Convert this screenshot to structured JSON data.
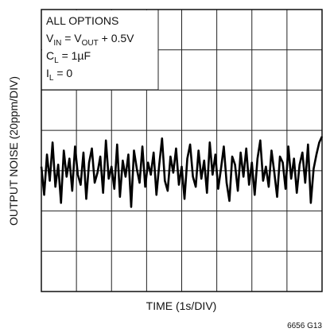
{
  "chart_data": {
    "type": "line",
    "y_label": "OUTPUT NOISE (20ppm/DIV)",
    "x_label": "TIME (1s/DIV)",
    "figure_id": "6656 G13",
    "annotation": [
      [
        "ALL OPTIONS"
      ],
      [
        "V",
        "IN",
        " = V",
        "OUT",
        " + 0.5V"
      ],
      [
        "C",
        "L",
        " = 1µF"
      ],
      [
        "I",
        "L",
        " = 0"
      ]
    ],
    "xlim": [
      0,
      8
    ],
    "ylim": [
      -60,
      80
    ],
    "xticks": [
      0,
      1,
      2,
      3,
      4,
      5,
      6,
      7,
      8
    ],
    "yticks": [
      -60,
      -40,
      -20,
      0,
      20,
      40,
      60,
      80
    ],
    "grid": true,
    "x": [
      0,
      0.08,
      0.16,
      0.24,
      0.32,
      0.4,
      0.48,
      0.56,
      0.64,
      0.72,
      0.8,
      0.88,
      0.96,
      1.04,
      1.12,
      1.2,
      1.28,
      1.36,
      1.44,
      1.52,
      1.6,
      1.68,
      1.76,
      1.84,
      1.92,
      2,
      2.08,
      2.16,
      2.24,
      2.32,
      2.4,
      2.48,
      2.56,
      2.64,
      2.72,
      2.8,
      2.88,
      2.96,
      3.04,
      3.12,
      3.2,
      3.28,
      3.36,
      3.44,
      3.52,
      3.6,
      3.68,
      3.76,
      3.84,
      3.92,
      4,
      4.08,
      4.16,
      4.24,
      4.32,
      4.4,
      4.48,
      4.56,
      4.64,
      4.72,
      4.8,
      4.88,
      4.96,
      5.04,
      5.12,
      5.2,
      5.28,
      5.36,
      5.44,
      5.52,
      5.6,
      5.68,
      5.76,
      5.84,
      5.92,
      6,
      6.08,
      6.16,
      6.24,
      6.32,
      6.4,
      6.48,
      6.56,
      6.64,
      6.72,
      6.8,
      6.88,
      6.96,
      7.04,
      7.12,
      7.2,
      7.28,
      7.36,
      7.44,
      7.52,
      7.6,
      7.68,
      7.76,
      7.84,
      7.92,
      8
    ],
    "series": [
      {
        "color": "#000000",
        "values": [
          2,
          -12,
          8,
          -5,
          14,
          -8,
          3,
          -16,
          10,
          -3,
          6,
          -10,
          12,
          -2,
          -7,
          9,
          -14,
          4,
          11,
          -6,
          -1,
          7,
          -11,
          15,
          -4,
          2,
          -9,
          13,
          -13,
          5,
          -3,
          8,
          -18,
          10,
          1,
          -6,
          12,
          -8,
          4,
          -2,
          9,
          -12,
          3,
          16,
          -5,
          -10,
          7,
          -1,
          11,
          -7,
          2,
          -14,
          6,
          13,
          -3,
          -8,
          10,
          -4,
          5,
          -11,
          14,
          -2,
          8,
          -9,
          1,
          12,
          -6,
          -15,
          7,
          3,
          -10,
          9,
          -3,
          11,
          -7,
          4,
          -12,
          6,
          15,
          -5,
          2,
          -8,
          10,
          -1,
          -13,
          7,
          4,
          -9,
          12,
          -4,
          6,
          -11,
          3,
          9,
          -6,
          13,
          -16,
          1,
          8,
          14,
          17
        ]
      }
    ]
  }
}
